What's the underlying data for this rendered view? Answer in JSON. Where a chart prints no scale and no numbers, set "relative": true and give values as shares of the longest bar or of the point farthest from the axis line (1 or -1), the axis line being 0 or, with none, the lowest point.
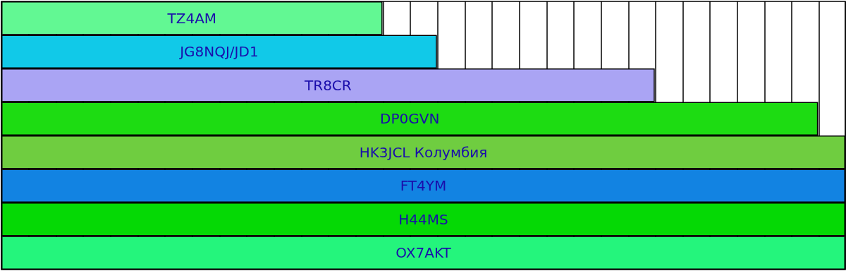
{
  "chart_data": {
    "type": "bar",
    "orientation": "horizontal",
    "relative": true,
    "grid": "x",
    "data_labels": false,
    "categories": [
      "TZ4AM",
      "JG8NQJ/JD1",
      "TR8CR",
      "DP0GVN",
      "HK3JCL Колумбия",
      "FT4YM",
      "H44MS",
      "OX7AKT"
    ],
    "values": [
      0.4516,
      0.5161,
      0.7742,
      0.9677,
      1,
      1,
      1,
      1
    ],
    "colors": [
      "#62f893",
      "#11c9e8",
      "#aaa4f4",
      "#1ddc12",
      "#6fcd40",
      "#1283e2",
      "#05d905",
      "#24f57c"
    ]
  }
}
